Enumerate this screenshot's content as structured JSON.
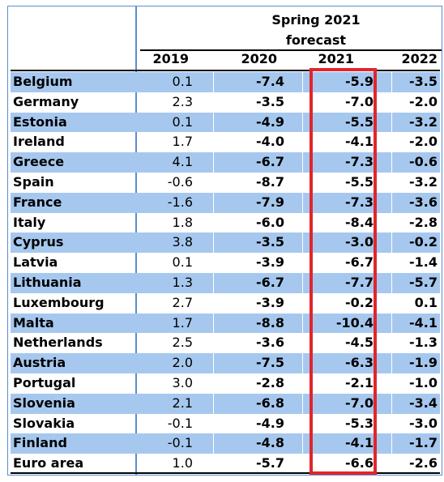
{
  "header": {
    "forecast_line1": "Spring 2021",
    "forecast_line2": "forecast"
  },
  "columns": [
    "2019",
    "2020",
    "2021",
    "2022"
  ],
  "rows": [
    {
      "country": "Belgium",
      "v2019": "0.1",
      "v2020": "-7.4",
      "v2021": "-5.9",
      "v2022": "-3.5",
      "shaded": true
    },
    {
      "country": "Germany",
      "v2019": "2.3",
      "v2020": "-3.5",
      "v2021": "-7.0",
      "v2022": "-2.0",
      "shaded": false
    },
    {
      "country": "Estonia",
      "v2019": "0.1",
      "v2020": "-4.9",
      "v2021": "-5.5",
      "v2022": "-3.2",
      "shaded": true
    },
    {
      "country": "Ireland",
      "v2019": "1.7",
      "v2020": "-4.0",
      "v2021": "-4.1",
      "v2022": "-2.0",
      "shaded": false
    },
    {
      "country": "Greece",
      "v2019": "4.1",
      "v2020": "-6.7",
      "v2021": "-7.3",
      "v2022": "-0.6",
      "shaded": true
    },
    {
      "country": "Spain",
      "v2019": "-0.6",
      "v2020": "-8.7",
      "v2021": "-5.5",
      "v2022": "-3.2",
      "shaded": false
    },
    {
      "country": "France",
      "v2019": "-1.6",
      "v2020": "-7.9",
      "v2021": "-7.3",
      "v2022": "-3.6",
      "shaded": true
    },
    {
      "country": "Italy",
      "v2019": "1.8",
      "v2020": "-6.0",
      "v2021": "-8.4",
      "v2022": "-2.8",
      "shaded": false
    },
    {
      "country": "Cyprus",
      "v2019": "3.8",
      "v2020": "-3.5",
      "v2021": "-3.0",
      "v2022": "-0.2",
      "shaded": true
    },
    {
      "country": "Latvia",
      "v2019": "0.1",
      "v2020": "-3.9",
      "v2021": "-6.7",
      "v2022": "-1.4",
      "shaded": false
    },
    {
      "country": "Lithuania",
      "v2019": "1.3",
      "v2020": "-6.7",
      "v2021": "-7.7",
      "v2022": "-5.7",
      "shaded": true
    },
    {
      "country": "Luxembourg",
      "v2019": "2.7",
      "v2020": "-3.9",
      "v2021": "-0.2",
      "v2022": "0.1",
      "shaded": false
    },
    {
      "country": "Malta",
      "v2019": "1.7",
      "v2020": "-8.8",
      "v2021": "-10.4",
      "v2022": "-4.1",
      "shaded": true
    },
    {
      "country": "Netherlands",
      "v2019": "2.5",
      "v2020": "-3.6",
      "v2021": "-4.5",
      "v2022": "-1.3",
      "shaded": false
    },
    {
      "country": "Austria",
      "v2019": "2.0",
      "v2020": "-7.5",
      "v2021": "-6.3",
      "v2022": "-1.9",
      "shaded": true
    },
    {
      "country": "Portugal",
      "v2019": "3.0",
      "v2020": "-2.8",
      "v2021": "-2.1",
      "v2022": "-1.0",
      "shaded": false
    },
    {
      "country": "Slovenia",
      "v2019": "2.1",
      "v2020": "-6.8",
      "v2021": "-7.0",
      "v2022": "-3.4",
      "shaded": true
    },
    {
      "country": "Slovakia",
      "v2019": "-0.1",
      "v2020": "-4.9",
      "v2021": "-5.3",
      "v2022": "-3.0",
      "shaded": false
    },
    {
      "country": "Finland",
      "v2019": "-0.1",
      "v2020": "-4.8",
      "v2021": "-4.1",
      "v2022": "-1.7",
      "shaded": true
    },
    {
      "country": "Euro area",
      "v2019": "1.0",
      "v2020": "-5.7",
      "v2021": "-6.6",
      "v2022": "-2.6",
      "shaded": false
    }
  ],
  "colors": {
    "row_shade": "#a6c8ef",
    "frame_border": "#5b8dcc",
    "highlight_box": "#e0262b"
  }
}
